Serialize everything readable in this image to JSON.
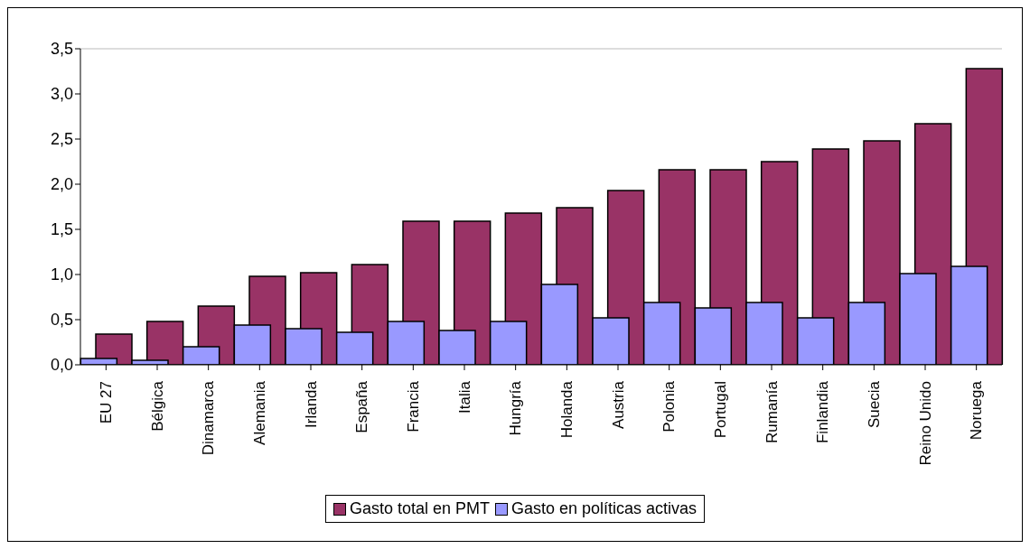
{
  "chart_data": {
    "type": "bar",
    "categories": [
      "EU 27",
      "Bélgica",
      "Dinamarca",
      "Alemania",
      "Irlanda",
      "España",
      "Francia",
      "Italia",
      "Hungría",
      "Holanda",
      "Austria",
      "Polonia",
      "Portugal",
      "Rumanía",
      "Finlandia",
      "Suecia",
      "Reino Unido",
      "Noruega"
    ],
    "series": [
      {
        "name": "Gasto total en PMT",
        "color": "#993366",
        "values": [
          0.34,
          0.48,
          0.65,
          0.98,
          1.02,
          1.11,
          1.59,
          1.59,
          1.68,
          1.74,
          1.93,
          2.16,
          2.16,
          2.25,
          2.39,
          2.48,
          2.67,
          3.28
        ]
      },
      {
        "name": "Gasto en políticas activas",
        "color": "#9999ff",
        "values": [
          0.07,
          0.05,
          0.2,
          0.44,
          0.4,
          0.36,
          0.48,
          0.38,
          0.48,
          0.89,
          0.52,
          0.69,
          0.63,
          0.69,
          0.52,
          0.69,
          1.01,
          1.09
        ]
      }
    ],
    "ylim": [
      0,
      3.5
    ],
    "yticks": [
      {
        "value": 0,
        "label": "0,0"
      },
      {
        "value": 0.5,
        "label": "0,5"
      },
      {
        "value": 1,
        "label": "1,0"
      },
      {
        "value": 1.5,
        "label": "1,5"
      },
      {
        "value": 2,
        "label": "2,0"
      },
      {
        "value": 2.5,
        "label": "2,5"
      },
      {
        "value": 3,
        "label": "3,0"
      },
      {
        "value": 3.5,
        "label": "3,5"
      }
    ],
    "grid": false,
    "legend": "bottom"
  }
}
